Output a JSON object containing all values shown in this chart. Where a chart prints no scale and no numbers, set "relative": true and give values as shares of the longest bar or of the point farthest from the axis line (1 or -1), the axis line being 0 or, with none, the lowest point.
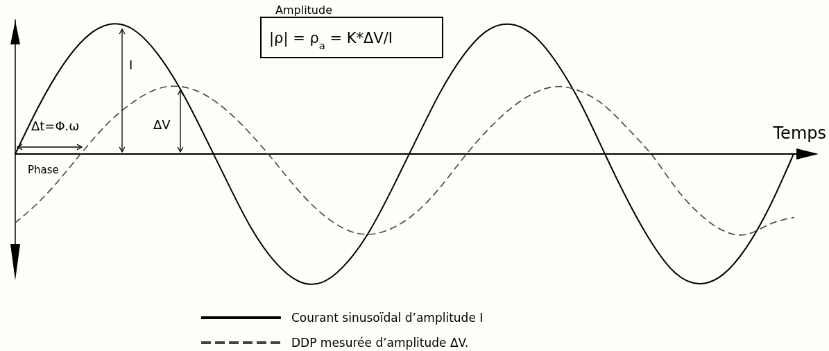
{
  "chart_data": {
    "type": "line",
    "relative": true,
    "xlabel": "Temps",
    "legend": "bottom",
    "grid": false,
    "marker": "none",
    "categories": [
      null,
      null,
      null,
      null,
      null,
      null,
      null,
      null,
      null,
      null,
      null,
      null,
      null,
      null,
      null,
      null,
      null,
      null,
      null,
      null,
      null,
      null,
      null,
      null,
      null,
      null,
      null,
      null,
      null,
      null,
      null,
      null,
      null,
      null
    ],
    "series": [
      {
        "name": "Courant sinusoïdal d’amplitude I",
        "color": "#000000",
        "line_style": "solid",
        "values": [
          0,
          0.37,
          0.68,
          0.9,
          1.0,
          0.96,
          0.78,
          0.5,
          0.15,
          -0.22,
          -0.57,
          -0.83,
          -0.98,
          -0.99,
          -0.85,
          -0.6,
          -0.26,
          0.11,
          0.47,
          0.76,
          0.95,
          1.0,
          0.91,
          0.69,
          0.38,
          0.0,
          -0.37,
          -0.69,
          -0.92,
          -1.0,
          -0.93,
          -0.72,
          -0.4,
          0
        ]
      },
      {
        "name": "DDP mesurée  d’amplitude ΔV.",
        "color": "#444444",
        "line_style": "dashed",
        "values": [
          -0.53,
          -0.37,
          -0.17,
          0.05,
          0.25,
          0.4,
          0.5,
          0.52,
          0.46,
          0.33,
          0.15,
          -0.06,
          -0.28,
          -0.46,
          -0.58,
          -0.62,
          -0.57,
          -0.45,
          -0.26,
          -0.03,
          0.18,
          0.35,
          0.47,
          0.52,
          0.48,
          0.37,
          0.19,
          -0.01,
          -0.26,
          -0.46,
          -0.59,
          -0.62,
          -0.54,
          -0.49
        ]
      }
    ],
    "annotations": [
      "Amplitude",
      "|ρ| = ρ$_{a}$ = K*ΔV/I",
      "I",
      "ΔV",
      "Δt=Φ.ω",
      "Phase"
    ]
  }
}
